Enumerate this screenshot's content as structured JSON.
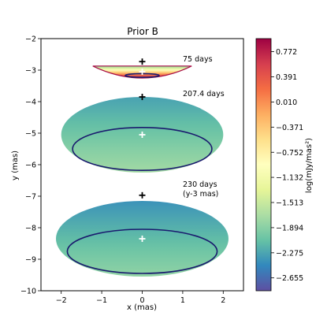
{
  "chart_data": {
    "type": "heatmap",
    "title": "Prior B",
    "xlabel": "x (mas)",
    "ylabel": "y (mas)",
    "xlim": [
      -2.5,
      2.5
    ],
    "ylim": [
      -10,
      -2
    ],
    "xticks": [
      -2,
      -1,
      0,
      1,
      2
    ],
    "yticks": [
      -10,
      -9,
      -8,
      -7,
      -6,
      -5,
      -4,
      -3,
      -2
    ],
    "colorbar": {
      "label": "log(mJy/mas²)",
      "range": [
        -2.85,
        0.97
      ],
      "ticks": [
        "0.772",
        "0.391",
        "0.010",
        "−0.371",
        "−0.752",
        "−1.132",
        "−1.513",
        "−1.894",
        "−2.275",
        "−2.655"
      ],
      "tick_values": [
        0.772,
        0.391,
        0.01,
        -0.371,
        -0.752,
        -1.132,
        -1.513,
        -1.894,
        -2.275,
        -2.655
      ],
      "colormap": "Spectral_r"
    },
    "panels": [
      {
        "label": "75 days",
        "label2": "",
        "black_cross": [
          0.0,
          -2.73
        ],
        "white_cross": [
          0.0,
          -3.05
        ],
        "ring": {
          "cx": 0.0,
          "cy": -3.17,
          "rx": 0.42,
          "ry": 0.06
        },
        "shape": "lens",
        "extent": {
          "x": [
            -1.22,
            1.22
          ],
          "y_top": -2.87,
          "y_bottom": -3.27
        },
        "value_range": [
          -1.9,
          0.9
        ]
      },
      {
        "label": "207.4 days",
        "label2": "",
        "black_cross": [
          0.0,
          -3.85
        ],
        "white_cross": [
          0.0,
          -5.05
        ],
        "ring": {
          "cx": 0.0,
          "cy": -5.5,
          "rx": 1.72,
          "ry": 0.68
        },
        "shape": "ellipse",
        "extent": {
          "cx": 0.0,
          "cy": -5.05,
          "rx": 2.0,
          "ry": 1.2
        },
        "value_range": [
          -2.3,
          -1.75
        ]
      },
      {
        "label": "230 days",
        "label2": "(y-3 mas)",
        "black_cross": [
          0.0,
          -6.97
        ],
        "white_cross": [
          0.0,
          -8.35
        ],
        "ring": {
          "cx": 0.0,
          "cy": -8.75,
          "rx": 1.85,
          "ry": 0.7
        },
        "shape": "ellipse",
        "extent": {
          "cx": 0.0,
          "cy": -8.35,
          "rx": 2.13,
          "ry": 1.2
        },
        "value_range": [
          -2.4,
          -1.85
        ]
      }
    ]
  }
}
